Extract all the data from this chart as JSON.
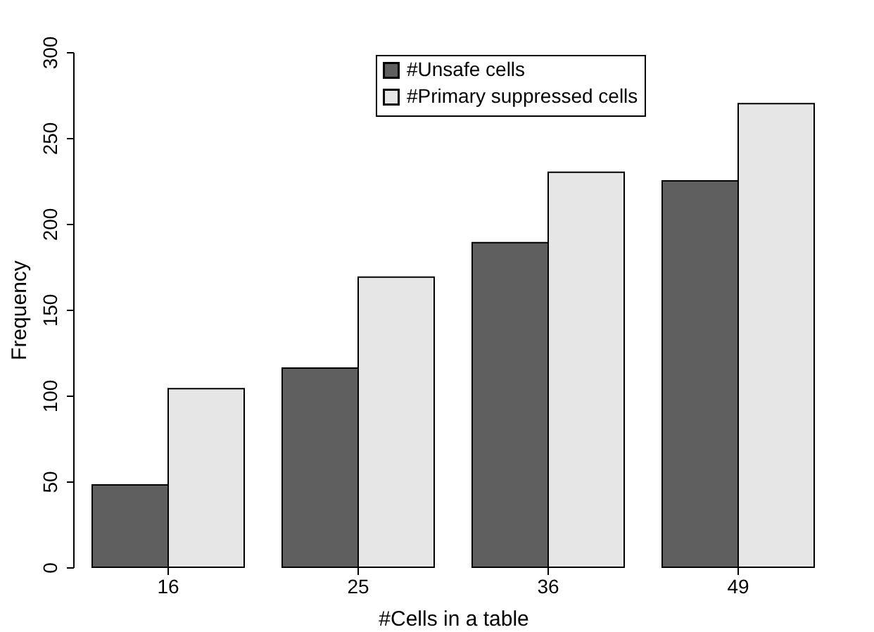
{
  "chart_data": {
    "type": "bar",
    "xlabel": "#Cells in a table",
    "ylabel": "Frequency",
    "categories": [
      "16",
      "25",
      "36",
      "49"
    ],
    "series": [
      {
        "name": "#Unsafe cells",
        "color": "#5f5f5f",
        "values": [
          48,
          116,
          189,
          225
        ]
      },
      {
        "name": "#Primary suppressed cells",
        "color": "#e6e6e6",
        "values": [
          104,
          169,
          230,
          270
        ]
      }
    ],
    "ylim": [
      0,
      300
    ],
    "yticks": [
      0,
      50,
      100,
      150,
      200,
      250,
      300
    ],
    "grid": false,
    "legend": "top"
  }
}
